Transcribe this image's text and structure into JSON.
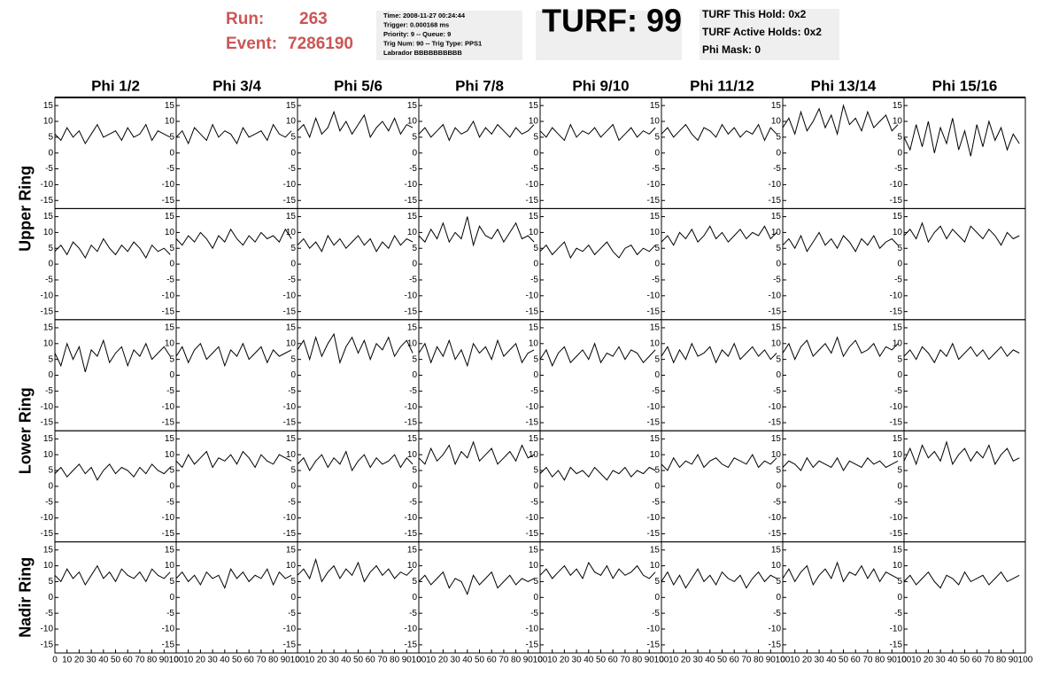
{
  "header": {
    "run_label": "Run:",
    "run": "263",
    "event_label": "Event:",
    "event": "7286190",
    "info": [
      "Time: 2008-11-27 00:24:44",
      "Trigger: 0.000168 ms",
      "Priority: 9 -- Queue: 9",
      "Trig Num: 90 -- Trig Type: PPS1",
      "Labrador BBBBBBBBBB"
    ],
    "turf": "TURF: 99",
    "turf_info": [
      "TURF This Hold: 0x2",
      "TURF Active Holds: 0x2",
      "Phi Mask: 0"
    ]
  },
  "chart_data": {
    "type": "line",
    "color": "#000000",
    "columns": [
      "Phi 1/2",
      "Phi 3/4",
      "Phi 5/6",
      "Phi 7/8",
      "Phi 9/10",
      "Phi 11/12",
      "Phi 13/14",
      "Phi 15/16"
    ],
    "rings": [
      "Upper Ring",
      "Lower Ring",
      "Nadir Ring"
    ],
    "x": [
      0,
      5,
      10,
      15,
      20,
      25,
      30,
      35,
      40,
      45,
      50,
      55,
      60,
      65,
      70,
      75,
      80,
      85,
      90,
      95
    ],
    "xlim": [
      0,
      100
    ],
    "xticks": [
      0,
      10,
      20,
      30,
      40,
      50,
      60,
      70,
      80,
      90,
      100
    ],
    "ylim": [
      -17,
      17
    ],
    "yticks": [
      -15,
      -10,
      -5,
      0,
      5,
      10,
      15
    ],
    "series": [
      {
        "values": [
          6,
          4,
          8,
          5,
          7,
          3,
          6,
          9,
          5,
          6,
          7,
          4,
          8,
          5,
          6,
          9,
          4,
          7,
          6,
          5
        ]
      },
      {
        "values": [
          5,
          7,
          3,
          8,
          6,
          4,
          9,
          5,
          7,
          6,
          3,
          8,
          5,
          6,
          7,
          4,
          9,
          6,
          5,
          7
        ]
      },
      {
        "values": [
          7,
          9,
          5,
          11,
          6,
          8,
          13,
          7,
          10,
          6,
          9,
          12,
          5,
          8,
          10,
          7,
          11,
          6,
          9,
          8
        ]
      },
      {
        "values": [
          6,
          8,
          5,
          7,
          9,
          4,
          8,
          6,
          7,
          10,
          5,
          8,
          6,
          9,
          7,
          5,
          8,
          6,
          7,
          9
        ]
      },
      {
        "values": [
          7,
          5,
          8,
          6,
          4,
          9,
          5,
          7,
          6,
          8,
          5,
          7,
          9,
          4,
          6,
          8,
          5,
          7,
          6,
          8
        ]
      },
      {
        "values": [
          6,
          8,
          5,
          7,
          9,
          6,
          4,
          8,
          7,
          5,
          9,
          6,
          8,
          5,
          7,
          6,
          9,
          4,
          8,
          6
        ]
      },
      {
        "values": [
          8,
          11,
          6,
          13,
          7,
          10,
          14,
          8,
          12,
          6,
          15,
          9,
          11,
          7,
          13,
          8,
          10,
          12,
          7,
          9
        ]
      },
      {
        "values": [
          5,
          1,
          9,
          2,
          10,
          0,
          8,
          3,
          11,
          1,
          7,
          -1,
          9,
          2,
          10,
          4,
          8,
          1,
          6,
          3
        ]
      },
      {
        "values": [
          4,
          6,
          3,
          7,
          5,
          2,
          6,
          4,
          8,
          5,
          3,
          6,
          4,
          7,
          5,
          2,
          6,
          4,
          5,
          3
        ]
      },
      {
        "values": [
          8,
          6,
          9,
          7,
          10,
          8,
          5,
          9,
          7,
          11,
          8,
          6,
          9,
          7,
          10,
          8,
          9,
          7,
          11,
          8
        ]
      },
      {
        "values": [
          6,
          8,
          5,
          7,
          4,
          9,
          6,
          8,
          5,
          7,
          9,
          6,
          8,
          4,
          7,
          5,
          9,
          6,
          8,
          7
        ]
      },
      {
        "values": [
          9,
          7,
          11,
          8,
          13,
          7,
          10,
          8,
          15,
          6,
          12,
          9,
          8,
          11,
          7,
          10,
          13,
          8,
          9,
          7
        ]
      },
      {
        "values": [
          4,
          6,
          3,
          5,
          7,
          2,
          5,
          4,
          6,
          3,
          5,
          7,
          4,
          2,
          5,
          6,
          3,
          5,
          4,
          6
        ]
      },
      {
        "values": [
          7,
          9,
          6,
          10,
          8,
          11,
          7,
          9,
          12,
          8,
          10,
          7,
          9,
          11,
          8,
          10,
          9,
          12,
          8,
          10
        ]
      },
      {
        "values": [
          6,
          8,
          5,
          9,
          4,
          7,
          10,
          6,
          8,
          5,
          9,
          7,
          4,
          8,
          6,
          9,
          5,
          7,
          8,
          6
        ]
      },
      {
        "values": [
          9,
          11,
          8,
          13,
          7,
          10,
          12,
          8,
          11,
          9,
          7,
          12,
          10,
          8,
          11,
          9,
          6,
          10,
          8,
          9
        ]
      },
      {
        "values": [
          7,
          3,
          10,
          5,
          9,
          1,
          8,
          6,
          11,
          4,
          7,
          9,
          3,
          8,
          6,
          10,
          5,
          7,
          9,
          6
        ]
      },
      {
        "values": [
          6,
          9,
          4,
          8,
          10,
          5,
          7,
          9,
          3,
          8,
          6,
          10,
          5,
          7,
          9,
          4,
          8,
          6,
          7,
          8
        ]
      },
      {
        "values": [
          8,
          11,
          5,
          12,
          6,
          10,
          13,
          4,
          9,
          12,
          7,
          11,
          5,
          10,
          8,
          12,
          6,
          9,
          11,
          7
        ]
      },
      {
        "values": [
          7,
          10,
          4,
          9,
          6,
          11,
          5,
          8,
          3,
          10,
          7,
          9,
          5,
          11,
          6,
          8,
          10,
          4,
          7,
          8
        ]
      },
      {
        "values": [
          5,
          8,
          3,
          7,
          9,
          4,
          6,
          8,
          5,
          10,
          4,
          7,
          6,
          9,
          5,
          8,
          7,
          4,
          6,
          8
        ]
      },
      {
        "values": [
          6,
          9,
          4,
          8,
          5,
          10,
          6,
          7,
          9,
          4,
          8,
          6,
          10,
          5,
          7,
          9,
          6,
          8,
          5,
          7
        ]
      },
      {
        "values": [
          7,
          10,
          5,
          9,
          11,
          6,
          8,
          10,
          7,
          12,
          6,
          9,
          11,
          7,
          8,
          10,
          6,
          9,
          8,
          10
        ]
      },
      {
        "values": [
          6,
          8,
          5,
          9,
          7,
          4,
          8,
          6,
          10,
          5,
          7,
          9,
          6,
          8,
          5,
          7,
          9,
          6,
          8,
          7
        ]
      },
      {
        "values": [
          4,
          6,
          3,
          5,
          7,
          4,
          6,
          2,
          5,
          7,
          4,
          6,
          5,
          3,
          6,
          4,
          7,
          5,
          4,
          6
        ]
      },
      {
        "values": [
          8,
          6,
          10,
          7,
          9,
          11,
          6,
          9,
          8,
          10,
          7,
          11,
          9,
          6,
          10,
          8,
          7,
          10,
          9,
          8
        ]
      },
      {
        "values": [
          7,
          9,
          5,
          8,
          10,
          6,
          9,
          7,
          11,
          5,
          8,
          10,
          6,
          9,
          7,
          8,
          10,
          6,
          9,
          7
        ]
      },
      {
        "values": [
          9,
          7,
          12,
          8,
          10,
          13,
          7,
          11,
          9,
          14,
          8,
          10,
          12,
          7,
          9,
          11,
          8,
          13,
          9,
          10
        ]
      },
      {
        "values": [
          4,
          6,
          3,
          5,
          2,
          6,
          4,
          5,
          3,
          6,
          4,
          2,
          5,
          4,
          6,
          3,
          5,
          4,
          6,
          5
        ]
      },
      {
        "values": [
          7,
          5,
          9,
          6,
          8,
          7,
          10,
          6,
          8,
          9,
          7,
          6,
          9,
          8,
          7,
          10,
          6,
          8,
          7,
          9
        ]
      },
      {
        "values": [
          6,
          8,
          7,
          5,
          9,
          6,
          8,
          7,
          6,
          9,
          5,
          8,
          7,
          6,
          9,
          7,
          8,
          6,
          7,
          8
        ]
      },
      {
        "values": [
          8,
          12,
          7,
          13,
          9,
          11,
          8,
          14,
          7,
          10,
          12,
          8,
          11,
          9,
          13,
          7,
          10,
          12,
          8,
          9
        ]
      },
      {
        "values": [
          7,
          5,
          9,
          6,
          8,
          4,
          7,
          10,
          6,
          8,
          5,
          9,
          7,
          6,
          8,
          5,
          9,
          7,
          6,
          8
        ]
      },
      {
        "values": [
          6,
          8,
          5,
          7,
          4,
          8,
          6,
          7,
          3,
          9,
          6,
          8,
          5,
          7,
          6,
          9,
          4,
          8,
          6,
          7
        ]
      },
      {
        "values": [
          7,
          9,
          6,
          12,
          5,
          8,
          10,
          6,
          9,
          7,
          11,
          5,
          8,
          10,
          7,
          9,
          6,
          8,
          7,
          9
        ]
      },
      {
        "values": [
          5,
          7,
          4,
          6,
          8,
          3,
          6,
          5,
          1,
          7,
          4,
          6,
          8,
          3,
          5,
          7,
          4,
          6,
          5,
          6
        ]
      },
      {
        "values": [
          7,
          9,
          6,
          8,
          10,
          7,
          9,
          6,
          11,
          8,
          7,
          10,
          6,
          9,
          7,
          8,
          10,
          7,
          6,
          8
        ]
      },
      {
        "values": [
          5,
          8,
          4,
          7,
          3,
          6,
          9,
          5,
          7,
          4,
          8,
          6,
          5,
          7,
          3,
          6,
          8,
          5,
          7,
          6
        ]
      },
      {
        "values": [
          6,
          9,
          5,
          8,
          10,
          4,
          7,
          9,
          6,
          11,
          5,
          8,
          7,
          10,
          6,
          9,
          5,
          8,
          7,
          6
        ]
      },
      {
        "values": [
          5,
          7,
          4,
          6,
          8,
          5,
          3,
          7,
          6,
          4,
          8,
          5,
          6,
          7,
          4,
          6,
          8,
          5,
          6,
          7
        ]
      }
    ]
  }
}
